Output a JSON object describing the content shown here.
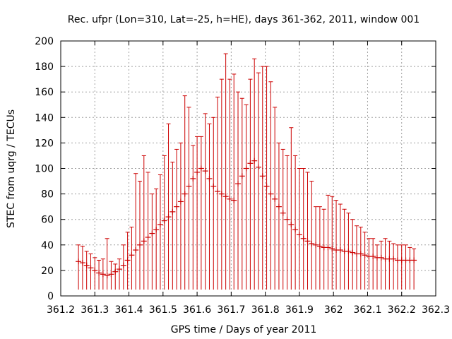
{
  "chart_data": {
    "type": "scatter",
    "title": "Rec. ufpr (Lon=310, Lat=-25, h=HE), days 361-362, 2011, window 001",
    "xlabel": "GPS time / Days of year 2011",
    "ylabel": "STEC from uqrg / TECUs",
    "xlim": [
      361.2,
      362.3
    ],
    "ylim": [
      0,
      200
    ],
    "xticks": [
      361.2,
      361.3,
      361.4,
      361.5,
      361.6,
      361.7,
      361.8,
      361.9,
      362,
      362.1,
      362.2,
      362.3
    ],
    "xtick_labels": [
      "361.2",
      "361.3",
      "361.4",
      "361.5",
      "361.6",
      "361.7",
      "361.8",
      "361.9",
      "362",
      "362.1",
      "362.2",
      "362.3"
    ],
    "yticks": [
      0,
      20,
      40,
      60,
      80,
      100,
      120,
      140,
      160,
      180,
      200
    ],
    "ytick_labels": [
      "0",
      "20",
      "40",
      "60",
      "80",
      "100",
      "120",
      "140",
      "160",
      "180",
      "200"
    ],
    "grid": true,
    "color": "#cc0000",
    "series": [
      {
        "name": "STEC with error bars",
        "x": [
          361.252,
          361.264,
          361.276,
          361.288,
          361.3,
          361.312,
          361.324,
          361.336,
          361.348,
          361.36,
          361.372,
          361.384,
          361.396,
          361.408,
          361.42,
          361.432,
          361.444,
          361.456,
          361.468,
          361.48,
          361.492,
          361.504,
          361.516,
          361.528,
          361.54,
          361.552,
          361.564,
          361.576,
          361.588,
          361.6,
          361.612,
          361.624,
          361.636,
          361.648,
          361.66,
          361.672,
          361.684,
          361.696,
          361.708,
          361.72,
          361.732,
          361.744,
          361.756,
          361.768,
          361.78,
          361.792,
          361.804,
          361.816,
          361.828,
          361.84,
          361.852,
          361.864,
          361.876,
          361.888,
          361.9,
          361.912,
          361.924,
          361.936,
          361.948,
          361.96,
          361.972,
          361.984,
          361.996,
          362.008,
          362.02,
          362.032,
          362.044,
          362.056,
          362.068,
          362.08,
          362.092,
          362.104,
          362.116,
          362.128,
          362.14,
          362.152,
          362.164,
          362.176,
          362.188,
          362.2,
          362.212,
          362.224,
          362.236
        ],
        "y": [
          27,
          26,
          24,
          22,
          20,
          18,
          17,
          16,
          17,
          19,
          21,
          24,
          28,
          32,
          36,
          40,
          43,
          46,
          49,
          52,
          56,
          59,
          62,
          66,
          70,
          74,
          80,
          86,
          92,
          97,
          100,
          98,
          92,
          86,
          82,
          80,
          78,
          76,
          75,
          88,
          94,
          100,
          104,
          106,
          101,
          94,
          86,
          80,
          76,
          70,
          65,
          60,
          56,
          52,
          48,
          45,
          43,
          41,
          40,
          39,
          38,
          38,
          37,
          36,
          36,
          35,
          35,
          34,
          33,
          33,
          32,
          31,
          31,
          30,
          30,
          29,
          29,
          29,
          28,
          28,
          28,
          28,
          28
        ],
        "upper": [
          40,
          39,
          35,
          33,
          30,
          28,
          29,
          45,
          27,
          25,
          29,
          40,
          50,
          54,
          96,
          90,
          110,
          97,
          80,
          84,
          95,
          110,
          135,
          105,
          115,
          120,
          157,
          148,
          118,
          125,
          125,
          143,
          135,
          140,
          156,
          170,
          190,
          170,
          174,
          160,
          155,
          150,
          170,
          186,
          175,
          180,
          180,
          168,
          148,
          120,
          115,
          110,
          132,
          110,
          100,
          100,
          97,
          90,
          70,
          70,
          68,
          79,
          78,
          75,
          72,
          68,
          65,
          60,
          55,
          54,
          50,
          45,
          45,
          40,
          43,
          45,
          43,
          41,
          40,
          40,
          40,
          38,
          37
        ],
        "lower": [
          5,
          5,
          5,
          5,
          5,
          5,
          5,
          5,
          5,
          5,
          5,
          5,
          5,
          5,
          5,
          5,
          5,
          5,
          5,
          5,
          5,
          5,
          5,
          5,
          5,
          5,
          5,
          5,
          5,
          5,
          5,
          5,
          5,
          5,
          5,
          5,
          5,
          5,
          5,
          5,
          5,
          5,
          5,
          5,
          5,
          5,
          5,
          5,
          5,
          5,
          5,
          5,
          5,
          5,
          5,
          5,
          5,
          5,
          5,
          5,
          5,
          5,
          5,
          5,
          5,
          5,
          5,
          5,
          5,
          5,
          5,
          5,
          5,
          5,
          5,
          5,
          5,
          5,
          5,
          5,
          5,
          5,
          5
        ]
      }
    ]
  }
}
